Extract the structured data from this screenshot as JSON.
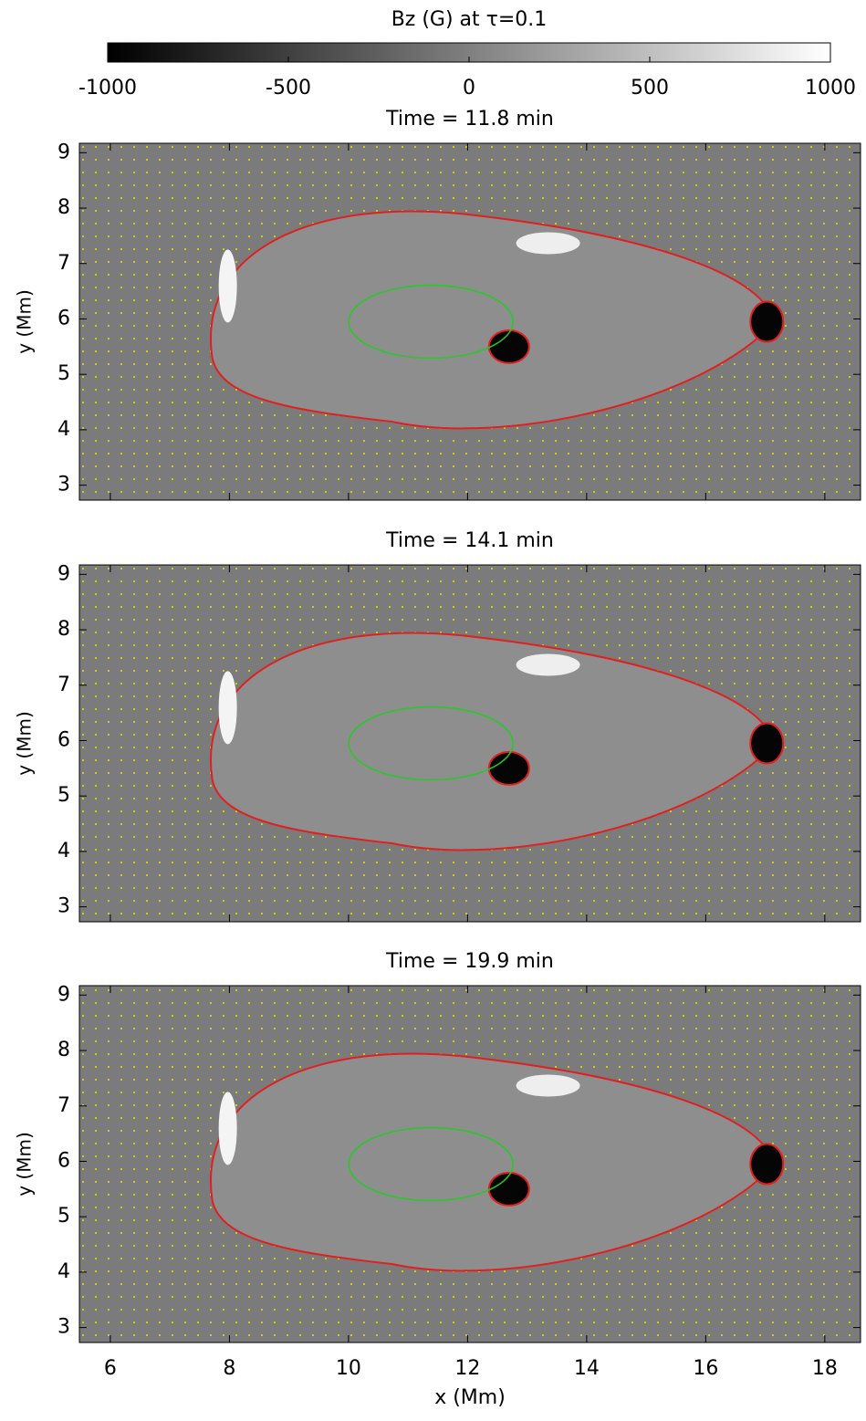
{
  "chart_data": [
    {
      "type": "colorbar",
      "title": "Bz (G) at τ=0.1",
      "lim": [
        -1000,
        1000
      ],
      "ticks": [
        -1000,
        -500,
        0,
        500,
        1000
      ],
      "colormap": [
        "#000000",
        "#ffffff"
      ]
    },
    {
      "type": "image",
      "title": "Time = 11.8 min",
      "xlim": [
        5.48,
        18.6
      ],
      "xticks": [
        6,
        8,
        10,
        12,
        14,
        16,
        18
      ],
      "ylim": [
        2.73,
        9.17
      ],
      "yticks": [
        3,
        4,
        5,
        6,
        7,
        8,
        9
      ],
      "ylabel": "y (Mm)"
    },
    {
      "type": "image",
      "title": "Time = 14.1 min",
      "xlim": [
        5.48,
        18.6
      ],
      "xticks": [
        6,
        8,
        10,
        12,
        14,
        16,
        18
      ],
      "ylim": [
        2.73,
        9.17
      ],
      "yticks": [
        3,
        4,
        5,
        6,
        7,
        8,
        9
      ],
      "ylabel": "y (Mm)"
    },
    {
      "type": "image",
      "title": "Time = 19.9 min",
      "xlim": [
        5.48,
        18.6
      ],
      "xticks": [
        6,
        8,
        10,
        12,
        14,
        16,
        18
      ],
      "ylim": [
        2.73,
        9.17
      ],
      "yticks": [
        3,
        4,
        5,
        6,
        7,
        8,
        9
      ],
      "xlabel": "x (Mm)",
      "ylabel": "y (Mm)"
    }
  ]
}
